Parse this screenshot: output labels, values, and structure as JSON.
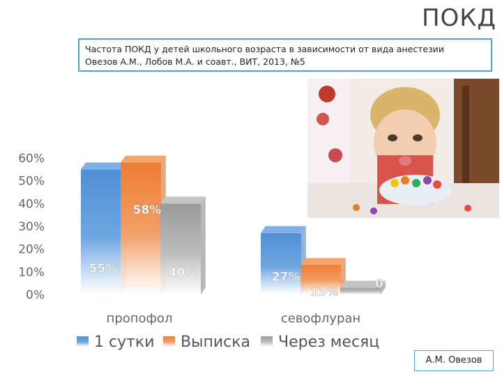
{
  "slide": {
    "title": "ПОКД",
    "caption_line1": "Частота ПОКД у детей школьного возраста в зависимости от вида анестезии",
    "caption_line2": "Овезов А.М., Лобов М.А. и соавт., ВИТ, 2013, №5",
    "author": "А.М. Овезов"
  },
  "photo": {
    "icon": "child-photo"
  },
  "colors": {
    "blue": "#4f8fd6",
    "orange": "#ed7d31",
    "gray": "#a5a5a5"
  },
  "chart_data": {
    "type": "bar",
    "categories": [
      "пропофол",
      "севофлуран"
    ],
    "series": [
      {
        "name": "1 сутки",
        "values": [
          55,
          27
        ],
        "labels": [
          "55%",
          "27%"
        ],
        "color": "#4f8fd6"
      },
      {
        "name": "Выписка",
        "values": [
          58,
          13
        ],
        "labels": [
          "58%",
          "13%"
        ],
        "color": "#ed7d31"
      },
      {
        "name": "Через месяц",
        "values": [
          40,
          0
        ],
        "labels": [
          "40%",
          "0"
        ],
        "color": "#a5a5a5"
      }
    ],
    "ylim": [
      0,
      60
    ],
    "yticks": [
      "0%",
      "10%",
      "20%",
      "30%",
      "40%",
      "50%",
      "60%"
    ],
    "legend": "bottom"
  }
}
